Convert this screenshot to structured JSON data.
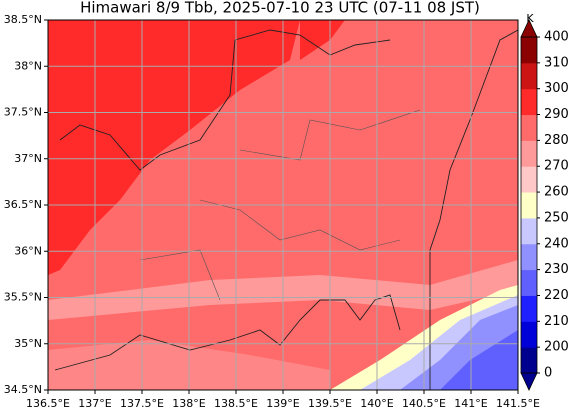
{
  "title": "Himawari 8/9 Tbb, 2025-07-10 23 UTC (07-11 08 JST)",
  "lon_ticks": [
    "136.5°E",
    "137°E",
    "137.5°E",
    "138°E",
    "138.5°E",
    "139°E",
    "139.5°E",
    "140°E",
    "140.5°E",
    "141°E",
    "141.5°E"
  ],
  "lat_ticks": [
    "34.5°N",
    "35°N",
    "35.5°N",
    "36°N",
    "36.5°N",
    "37°N",
    "37.5°N",
    "38°N",
    "38.5°N"
  ],
  "colorbar": {
    "unit": "K",
    "ticks": [
      0,
      200,
      210,
      220,
      230,
      240,
      250,
      260,
      270,
      280,
      290,
      300,
      310,
      400
    ],
    "colors": [
      "#00008f",
      "#0000d8",
      "#2020ff",
      "#6060ff",
      "#9090ff",
      "#c8c8ff",
      "#ffffc8",
      "#ffc8c8",
      "#ff9a9a",
      "#ff6a6a",
      "#ff2a2a",
      "#cc1414",
      "#8b0000"
    ]
  }
}
